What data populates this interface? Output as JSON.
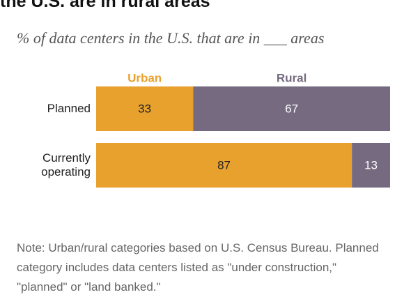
{
  "chart_data": {
    "type": "bar",
    "orientation": "horizontal",
    "stacked": true,
    "title": "the U.S. are in rural areas",
    "subtitle": "% of data centers in the U.S. that are in ___ areas",
    "categories": [
      "Planned",
      "Currently operating"
    ],
    "series": [
      {
        "name": "Urban",
        "color": "#e9a12e",
        "values": [
          33,
          87
        ]
      },
      {
        "name": "Rural",
        "color": "#756a80",
        "values": [
          67,
          13
        ]
      }
    ],
    "xlim": [
      0,
      100
    ],
    "note": "Note: Urban/rural categories based on U.S. Census Bureau. Planned category includes data centers listed as \"under construction,\" \"planned\" or \"land banked.\""
  }
}
